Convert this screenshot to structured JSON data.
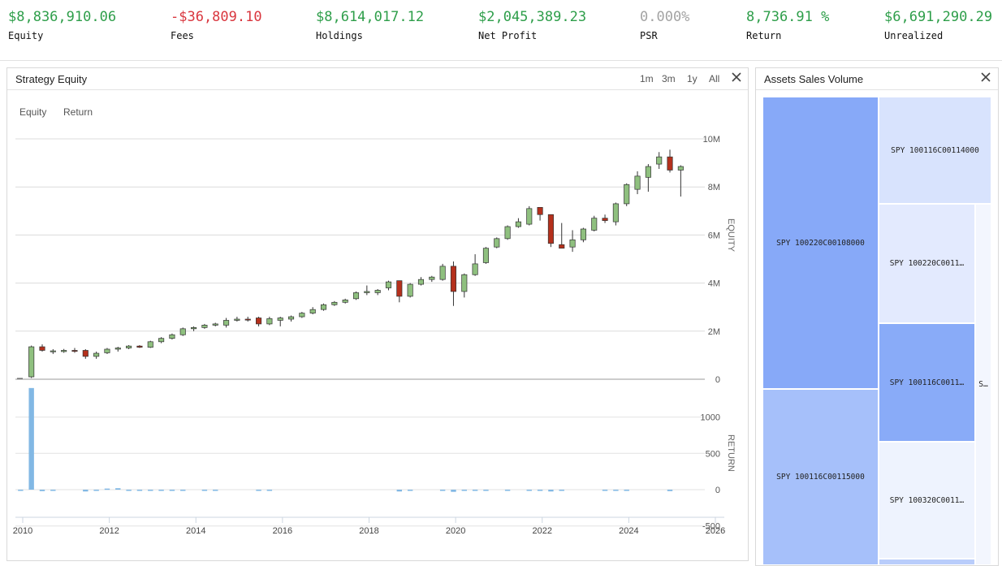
{
  "stats": [
    {
      "value": "$8,836,910.06",
      "label": "Equity",
      "color": "#2e9e4a"
    },
    {
      "value": "-$36,809.10",
      "label": "Fees",
      "color": "#d9363e"
    },
    {
      "value": "$8,614,017.12",
      "label": "Holdings",
      "color": "#2e9e4a"
    },
    {
      "value": "$2,045,389.23",
      "label": "Net Profit",
      "color": "#2e9e4a"
    },
    {
      "value": "0.000%",
      "label": "PSR",
      "color": "#a3a3a3"
    },
    {
      "value": "8,736.91 %",
      "label": "Return",
      "color": "#2e9e4a"
    },
    {
      "value": "$6,691,290.29",
      "label": "Unrealized",
      "color": "#2e9e4a"
    }
  ],
  "equity_panel": {
    "title": "Strategy Equity",
    "ranges": [
      "1m",
      "3m",
      "1y",
      "All"
    ],
    "legend": [
      "Equity",
      "Return"
    ]
  },
  "treemap_panel": {
    "title": "Assets Sales Volume",
    "cells": [
      {
        "label": "SPY 100220C00108000",
        "color": "#87a9f8"
      },
      {
        "label": "SPY 100116C00114000",
        "color": "#d8e3fd"
      },
      {
        "label": "SPY 100220C0011…",
        "color": "#e3eafe"
      },
      {
        "label": "SPY 100116C0011…",
        "color": "#89abf8"
      },
      {
        "label": "S…",
        "color": "#f3f6fe"
      },
      {
        "label": "SPY 100116C00115000",
        "color": "#a6c0fa"
      },
      {
        "label": "SPY 100320C0011…",
        "color": "#eef3fe"
      },
      {
        "label": "",
        "color": "#b9cdfb"
      }
    ]
  },
  "chart_data": {
    "type": "candlestick",
    "x_ticks": [
      "2010",
      "2012",
      "2014",
      "2016",
      "2018",
      "2020",
      "2022",
      "2024",
      "2026"
    ],
    "x_range": [
      2010,
      2026
    ],
    "up_color": "#8fc07f",
    "down_color": "#b5301c",
    "return_color": "#82b8e4",
    "equity": {
      "ylabel": "EQUITY",
      "yticks": [
        "0",
        "2M",
        "4M",
        "6M",
        "8M",
        "10M"
      ],
      "yrange": [
        0,
        10000000
      ],
      "candles": [
        {
          "t": 2010.2,
          "o": 100000,
          "h": 1400000,
          "l": 50000,
          "c": 1350000
        },
        {
          "t": 2010.45,
          "o": 1350000,
          "h": 1450000,
          "l": 1150000,
          "c": 1200000
        },
        {
          "t": 2010.7,
          "o": 1150000,
          "h": 1250000,
          "l": 1050000,
          "c": 1180000
        },
        {
          "t": 2010.95,
          "o": 1150000,
          "h": 1260000,
          "l": 1100000,
          "c": 1200000
        },
        {
          "t": 2011.2,
          "o": 1200000,
          "h": 1300000,
          "l": 1100000,
          "c": 1180000
        },
        {
          "t": 2011.45,
          "o": 1200000,
          "h": 1250000,
          "l": 850000,
          "c": 950000
        },
        {
          "t": 2011.7,
          "o": 950000,
          "h": 1150000,
          "l": 850000,
          "c": 1080000
        },
        {
          "t": 2011.95,
          "o": 1100000,
          "h": 1300000,
          "l": 1050000,
          "c": 1250000
        },
        {
          "t": 2012.2,
          "o": 1250000,
          "h": 1350000,
          "l": 1150000,
          "c": 1300000
        },
        {
          "t": 2012.45,
          "o": 1300000,
          "h": 1420000,
          "l": 1250000,
          "c": 1380000
        },
        {
          "t": 2012.7,
          "o": 1380000,
          "h": 1420000,
          "l": 1300000,
          "c": 1330000
        },
        {
          "t": 2012.95,
          "o": 1330000,
          "h": 1600000,
          "l": 1300000,
          "c": 1560000
        },
        {
          "t": 2013.2,
          "o": 1560000,
          "h": 1750000,
          "l": 1500000,
          "c": 1700000
        },
        {
          "t": 2013.45,
          "o": 1700000,
          "h": 1900000,
          "l": 1650000,
          "c": 1850000
        },
        {
          "t": 2013.7,
          "o": 1850000,
          "h": 2150000,
          "l": 1800000,
          "c": 2100000
        },
        {
          "t": 2013.95,
          "o": 2100000,
          "h": 2200000,
          "l": 2000000,
          "c": 2150000
        },
        {
          "t": 2014.2,
          "o": 2150000,
          "h": 2300000,
          "l": 2100000,
          "c": 2250000
        },
        {
          "t": 2014.45,
          "o": 2250000,
          "h": 2350000,
          "l": 2200000,
          "c": 2300000
        },
        {
          "t": 2014.7,
          "o": 2250000,
          "h": 2550000,
          "l": 2150000,
          "c": 2450000
        },
        {
          "t": 2014.95,
          "o": 2450000,
          "h": 2600000,
          "l": 2400000,
          "c": 2500000
        },
        {
          "t": 2015.2,
          "o": 2500000,
          "h": 2600000,
          "l": 2400000,
          "c": 2480000
        },
        {
          "t": 2015.45,
          "o": 2550000,
          "h": 2600000,
          "l": 2200000,
          "c": 2300000
        },
        {
          "t": 2015.7,
          "o": 2300000,
          "h": 2600000,
          "l": 2250000,
          "c": 2520000
        },
        {
          "t": 2015.95,
          "o": 2450000,
          "h": 2600000,
          "l": 2200000,
          "c": 2550000
        },
        {
          "t": 2016.2,
          "o": 2500000,
          "h": 2650000,
          "l": 2400000,
          "c": 2600000
        },
        {
          "t": 2016.45,
          "o": 2600000,
          "h": 2800000,
          "l": 2550000,
          "c": 2750000
        },
        {
          "t": 2016.7,
          "o": 2750000,
          "h": 3000000,
          "l": 2700000,
          "c": 2900000
        },
        {
          "t": 2016.95,
          "o": 2900000,
          "h": 3150000,
          "l": 2850000,
          "c": 3100000
        },
        {
          "t": 2017.2,
          "o": 3100000,
          "h": 3250000,
          "l": 3050000,
          "c": 3200000
        },
        {
          "t": 2017.45,
          "o": 3200000,
          "h": 3350000,
          "l": 3150000,
          "c": 3300000
        },
        {
          "t": 2017.7,
          "o": 3350000,
          "h": 3650000,
          "l": 3300000,
          "c": 3600000
        },
        {
          "t": 2017.95,
          "o": 3600000,
          "h": 3900000,
          "l": 3500000,
          "c": 3650000
        },
        {
          "t": 2018.2,
          "o": 3600000,
          "h": 3750000,
          "l": 3500000,
          "c": 3700000
        },
        {
          "t": 2018.45,
          "o": 3800000,
          "h": 4100000,
          "l": 3700000,
          "c": 4050000
        },
        {
          "t": 2018.7,
          "o": 4100000,
          "h": 4100000,
          "l": 3200000,
          "c": 3450000
        },
        {
          "t": 2018.95,
          "o": 3450000,
          "h": 4000000,
          "l": 3400000,
          "c": 3950000
        },
        {
          "t": 2019.2,
          "o": 3950000,
          "h": 4250000,
          "l": 3900000,
          "c": 4150000
        },
        {
          "t": 2019.45,
          "o": 4150000,
          "h": 4300000,
          "l": 4050000,
          "c": 4250000
        },
        {
          "t": 2019.7,
          "o": 4150000,
          "h": 4800000,
          "l": 4100000,
          "c": 4700000
        },
        {
          "t": 2019.95,
          "o": 4700000,
          "h": 4900000,
          "l": 3050000,
          "c": 3650000
        },
        {
          "t": 2020.2,
          "o": 3650000,
          "h": 4400000,
          "l": 3400000,
          "c": 4350000
        },
        {
          "t": 2020.45,
          "o": 4350000,
          "h": 5200000,
          "l": 4300000,
          "c": 4800000
        },
        {
          "t": 2020.7,
          "o": 4850000,
          "h": 5500000,
          "l": 4800000,
          "c": 5450000
        },
        {
          "t": 2020.95,
          "o": 5500000,
          "h": 5900000,
          "l": 5450000,
          "c": 5850000
        },
        {
          "t": 2021.2,
          "o": 5850000,
          "h": 6400000,
          "l": 5800000,
          "c": 6350000
        },
        {
          "t": 2021.45,
          "o": 6350000,
          "h": 6700000,
          "l": 6300000,
          "c": 6550000
        },
        {
          "t": 2021.7,
          "o": 6450000,
          "h": 7200000,
          "l": 6400000,
          "c": 7100000
        },
        {
          "t": 2021.95,
          "o": 7150000,
          "h": 7150000,
          "l": 6600000,
          "c": 6850000
        },
        {
          "t": 2022.2,
          "o": 6850000,
          "h": 6850000,
          "l": 5500000,
          "c": 5650000
        },
        {
          "t": 2022.45,
          "o": 5600000,
          "h": 6500000,
          "l": 5450000,
          "c": 5450000
        },
        {
          "t": 2022.7,
          "o": 5500000,
          "h": 6200000,
          "l": 5300000,
          "c": 5800000
        },
        {
          "t": 2022.95,
          "o": 5800000,
          "h": 6300000,
          "l": 5700000,
          "c": 6250000
        },
        {
          "t": 2023.2,
          "o": 6200000,
          "h": 6800000,
          "l": 6150000,
          "c": 6700000
        },
        {
          "t": 2023.45,
          "o": 6700000,
          "h": 6850000,
          "l": 6500000,
          "c": 6600000
        },
        {
          "t": 2023.7,
          "o": 6550000,
          "h": 7350000,
          "l": 6400000,
          "c": 7300000
        },
        {
          "t": 2023.95,
          "o": 7300000,
          "h": 8150000,
          "l": 7200000,
          "c": 8100000
        },
        {
          "t": 2024.2,
          "o": 7900000,
          "h": 8650000,
          "l": 7700000,
          "c": 8450000
        },
        {
          "t": 2024.45,
          "o": 8400000,
          "h": 8950000,
          "l": 7800000,
          "c": 8850000
        },
        {
          "t": 2024.7,
          "o": 8950000,
          "h": 9450000,
          "l": 8750000,
          "c": 9250000
        },
        {
          "t": 2024.95,
          "o": 9250000,
          "h": 9550000,
          "l": 8600000,
          "c": 8700000
        },
        {
          "t": 2025.2,
          "o": 8700000,
          "h": 8900000,
          "l": 7600000,
          "c": 8850000
        }
      ]
    },
    "return": {
      "ylabel": "RETURN",
      "yticks": [
        "-500",
        "0",
        "500",
        "1000"
      ],
      "yrange": [
        -500,
        1400
      ],
      "bars": [
        {
          "t": 2009.95,
          "v": -8
        },
        {
          "t": 2010.2,
          "v": 1400
        },
        {
          "t": 2010.45,
          "v": -20
        },
        {
          "t": 2010.7,
          "v": -15
        },
        {
          "t": 2011.45,
          "v": -25
        },
        {
          "t": 2011.7,
          "v": -10
        },
        {
          "t": 2011.95,
          "v": 15
        },
        {
          "t": 2012.2,
          "v": 20
        },
        {
          "t": 2012.45,
          "v": -12
        },
        {
          "t": 2012.7,
          "v": -10
        },
        {
          "t": 2012.95,
          "v": -15
        },
        {
          "t": 2013.2,
          "v": -10
        },
        {
          "t": 2013.45,
          "v": -8
        },
        {
          "t": 2013.7,
          "v": -6
        },
        {
          "t": 2014.2,
          "v": -6
        },
        {
          "t": 2014.45,
          "v": -8
        },
        {
          "t": 2015.45,
          "v": -15
        },
        {
          "t": 2015.7,
          "v": -10
        },
        {
          "t": 2018.7,
          "v": -25
        },
        {
          "t": 2018.95,
          "v": -10
        },
        {
          "t": 2019.7,
          "v": -10
        },
        {
          "t": 2019.95,
          "v": -30
        },
        {
          "t": 2020.2,
          "v": -10
        },
        {
          "t": 2020.45,
          "v": -10
        },
        {
          "t": 2020.7,
          "v": -8
        },
        {
          "t": 2021.2,
          "v": -6
        },
        {
          "t": 2021.7,
          "v": -6
        },
        {
          "t": 2021.95,
          "v": -10
        },
        {
          "t": 2022.2,
          "v": -25
        },
        {
          "t": 2022.45,
          "v": -15
        },
        {
          "t": 2023.45,
          "v": -8
        },
        {
          "t": 2023.7,
          "v": -6
        },
        {
          "t": 2023.95,
          "v": -8
        },
        {
          "t": 2024.95,
          "v": -20
        }
      ]
    }
  }
}
